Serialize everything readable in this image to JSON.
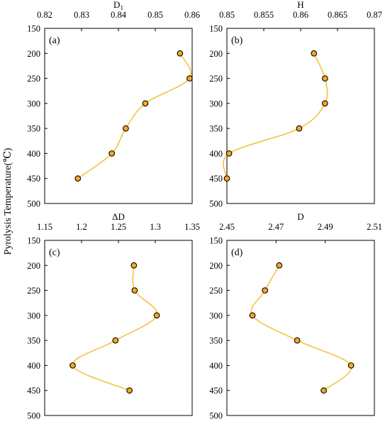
{
  "ylabel": "Pyrolysis Temperature(℃)",
  "chart_data": [
    {
      "type": "line",
      "panel_label": "(a)",
      "xlabel": "D",
      "xlabel_sub": "1",
      "xlim": [
        0.82,
        0.86
      ],
      "xticks": [
        "0.82",
        "0.83",
        "0.84",
        "0.85",
        "0.86"
      ],
      "ylim": [
        500,
        150
      ],
      "yticks": [
        "150",
        "200",
        "250",
        "300",
        "350",
        "400",
        "450",
        "500"
      ],
      "x": [
        0.8567,
        0.8593,
        0.8473,
        0.842,
        0.8382,
        0.829
      ],
      "y": [
        200,
        250,
        300,
        350,
        400,
        450
      ],
      "line_color": "#F5C242",
      "marker_color": "#F5A623"
    },
    {
      "type": "line",
      "panel_label": "(b)",
      "xlabel": "H",
      "xlabel_sub": "",
      "xlim": [
        0.85,
        0.87
      ],
      "xticks": [
        "0.85",
        "0.855",
        "0.86",
        "0.865",
        "0.87"
      ],
      "ylim": [
        500,
        150
      ],
      "yticks": [
        "150",
        "200",
        "250",
        "300",
        "350",
        "400",
        "450",
        "500"
      ],
      "x": [
        0.8618,
        0.8633,
        0.8633,
        0.8598,
        0.8503,
        0.85
      ],
      "y": [
        200,
        250,
        300,
        350,
        400,
        450
      ],
      "line_color": "#F5C242",
      "marker_color": "#F5A623"
    },
    {
      "type": "line",
      "panel_label": "(c)",
      "xlabel": "ΔD",
      "xlabel_sub": "",
      "xlim": [
        1.15,
        1.35
      ],
      "xticks": [
        "1.15",
        "1.2",
        "1.25",
        "1.3",
        "1.35"
      ],
      "ylim": [
        500,
        150
      ],
      "yticks": [
        "150",
        "200",
        "250",
        "300",
        "350",
        "400",
        "450",
        "500"
      ],
      "x": [
        1.271,
        1.272,
        1.302,
        1.246,
        1.188,
        1.265
      ],
      "y": [
        200,
        250,
        300,
        350,
        400,
        450
      ],
      "line_color": "#F5C242",
      "marker_color": "#F5A623"
    },
    {
      "type": "line",
      "panel_label": "(d)",
      "xlabel": "D",
      "xlabel_sub": "",
      "xlim": [
        2.45,
        2.51
      ],
      "xticks": [
        "2.45",
        "2.47",
        "2.49",
        "2.51"
      ],
      "ylim": [
        500,
        150
      ],
      "yticks": [
        "150",
        "200",
        "250",
        "300",
        "350",
        "400",
        "450",
        "500"
      ],
      "x": [
        2.4713,
        2.4655,
        2.4604,
        2.4786,
        2.5005,
        2.4894
      ],
      "y": [
        200,
        250,
        300,
        350,
        400,
        450
      ],
      "line_color": "#F5C242",
      "marker_color": "#F5A623"
    }
  ]
}
